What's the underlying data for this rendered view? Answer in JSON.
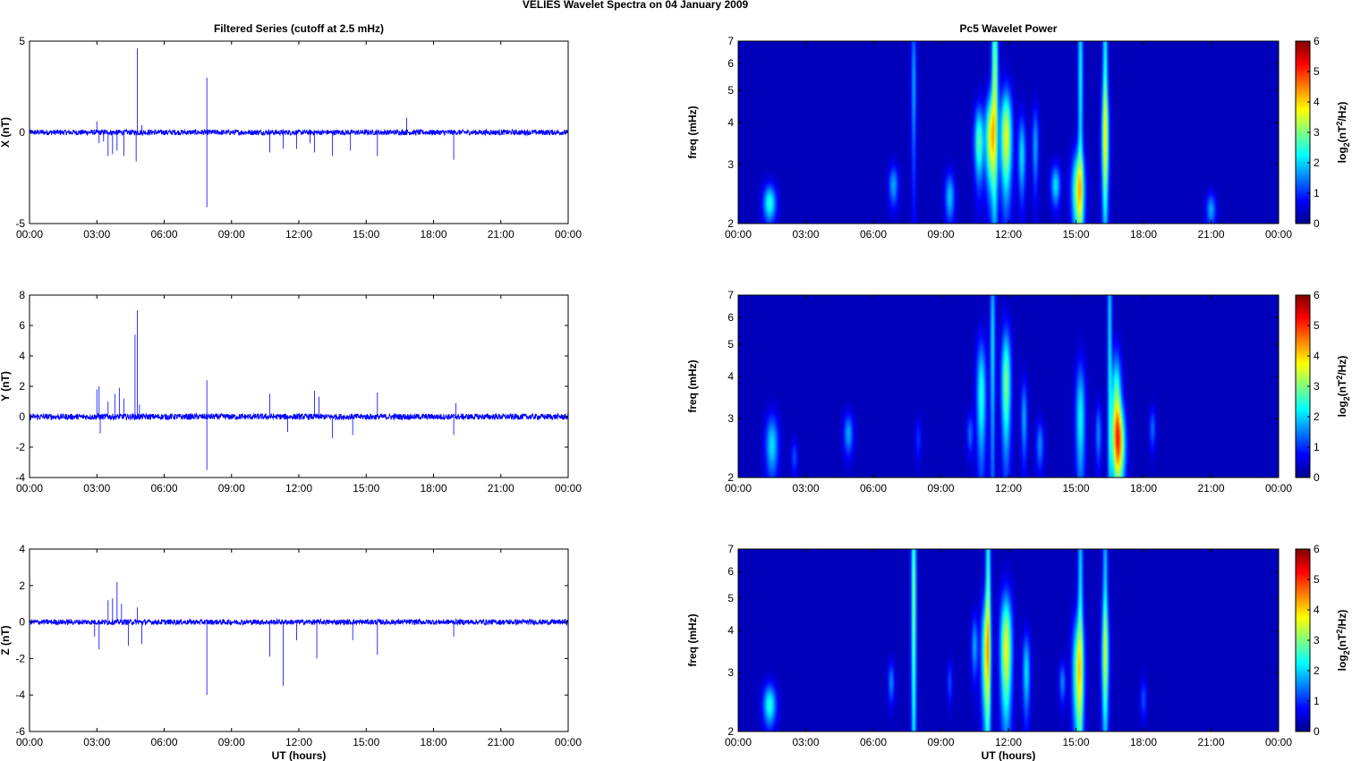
{
  "figure": {
    "title": "VELIES Wavelet Spectra on 04 January   2009",
    "left_title": "Filtered Series (cutoff at 2.5 mHz)",
    "right_title": "Pc5 Wavelet Power"
  },
  "chart_data": [
    {
      "type": "line",
      "ylabel": "X (nT)",
      "xlabel": "",
      "ylim": [
        -5,
        5
      ],
      "yticks": [
        -5,
        0,
        5
      ],
      "xlim_hours": [
        0,
        24
      ],
      "x_tick_labels": [
        "00:00",
        "03:00",
        "06:00",
        "09:00",
        "12:00",
        "15:00",
        "18:00",
        "21:00",
        "00:00"
      ],
      "series_color": "#0000ff",
      "noise_amplitude": 0.15,
      "spikes": [
        {
          "x": 3.0,
          "y": 0.6
        },
        {
          "x": 3.1,
          "y": -0.6
        },
        {
          "x": 3.3,
          "y": -0.5
        },
        {
          "x": 3.5,
          "y": -1.3
        },
        {
          "x": 3.7,
          "y": -1.2
        },
        {
          "x": 3.9,
          "y": -1.0
        },
        {
          "x": 4.2,
          "y": -1.3
        },
        {
          "x": 4.8,
          "y": 4.6
        },
        {
          "x": 4.75,
          "y": -1.6
        },
        {
          "x": 5.0,
          "y": 0.4
        },
        {
          "x": 7.9,
          "y": 3.0
        },
        {
          "x": 7.9,
          "y": -4.1
        },
        {
          "x": 10.7,
          "y": -1.1
        },
        {
          "x": 11.3,
          "y": -0.9
        },
        {
          "x": 11.9,
          "y": -0.9
        },
        {
          "x": 12.5,
          "y": -0.6
        },
        {
          "x": 12.7,
          "y": -1.1
        },
        {
          "x": 13.5,
          "y": -1.3
        },
        {
          "x": 14.3,
          "y": -1.0
        },
        {
          "x": 15.5,
          "y": -1.3
        },
        {
          "x": 16.8,
          "y": 0.8
        },
        {
          "x": 18.9,
          "y": -1.5
        }
      ]
    },
    {
      "type": "line",
      "ylabel": "Y (nT)",
      "xlabel": "",
      "ylim": [
        -4,
        8
      ],
      "yticks": [
        -4,
        -2,
        0,
        2,
        4,
        6,
        8
      ],
      "xlim_hours": [
        0,
        24
      ],
      "x_tick_labels": [
        "00:00",
        "03:00",
        "06:00",
        "09:00",
        "12:00",
        "15:00",
        "18:00",
        "21:00",
        "00:00"
      ],
      "series_color": "#0000ff",
      "noise_amplitude": 0.2,
      "spikes": [
        {
          "x": 3.0,
          "y": 1.8
        },
        {
          "x": 3.1,
          "y": 2.0
        },
        {
          "x": 3.15,
          "y": -1.1
        },
        {
          "x": 3.5,
          "y": 1.0
        },
        {
          "x": 3.8,
          "y": 1.5
        },
        {
          "x": 4.0,
          "y": 1.9
        },
        {
          "x": 4.2,
          "y": 1.2
        },
        {
          "x": 4.7,
          "y": 5.4
        },
        {
          "x": 4.8,
          "y": 7.0
        },
        {
          "x": 4.9,
          "y": 0.8
        },
        {
          "x": 7.9,
          "y": 2.4
        },
        {
          "x": 7.9,
          "y": -3.5
        },
        {
          "x": 10.7,
          "y": 1.5
        },
        {
          "x": 11.5,
          "y": -1.0
        },
        {
          "x": 12.7,
          "y": 1.7
        },
        {
          "x": 12.9,
          "y": 1.3
        },
        {
          "x": 13.5,
          "y": -1.4
        },
        {
          "x": 14.4,
          "y": -1.2
        },
        {
          "x": 15.5,
          "y": 1.6
        },
        {
          "x": 18.9,
          "y": -1.2
        },
        {
          "x": 19.0,
          "y": 0.9
        }
      ]
    },
    {
      "type": "line",
      "ylabel": "Z (nT)",
      "xlabel": "UT (hours)",
      "ylim": [
        -6,
        4
      ],
      "yticks": [
        -6,
        -4,
        -2,
        0,
        2,
        4
      ],
      "xlim_hours": [
        0,
        24
      ],
      "x_tick_labels": [
        "00:00",
        "03:00",
        "06:00",
        "09:00",
        "12:00",
        "15:00",
        "18:00",
        "21:00",
        "00:00"
      ],
      "series_color": "#0000ff",
      "noise_amplitude": 0.15,
      "spikes": [
        {
          "x": 2.9,
          "y": -0.8
        },
        {
          "x": 3.1,
          "y": -1.5
        },
        {
          "x": 3.5,
          "y": 1.2
        },
        {
          "x": 3.7,
          "y": 1.3
        },
        {
          "x": 3.9,
          "y": 2.2
        },
        {
          "x": 4.1,
          "y": 1.0
        },
        {
          "x": 4.4,
          "y": -1.3
        },
        {
          "x": 4.8,
          "y": 0.8
        },
        {
          "x": 5.0,
          "y": -1.2
        },
        {
          "x": 7.9,
          "y": -4.0
        },
        {
          "x": 10.7,
          "y": -1.9
        },
        {
          "x": 11.3,
          "y": -3.5
        },
        {
          "x": 11.9,
          "y": -1.0
        },
        {
          "x": 12.8,
          "y": -2.0
        },
        {
          "x": 14.4,
          "y": -1.0
        },
        {
          "x": 15.5,
          "y": -1.8
        },
        {
          "x": 18.9,
          "y": -0.8
        }
      ]
    },
    {
      "type": "heatmap",
      "ylabel": "freq (mHz)",
      "xlabel": "",
      "y_scale": "log",
      "ylim_mHz": [
        2,
        7
      ],
      "yticks": [
        2,
        3,
        4,
        5,
        6,
        7
      ],
      "xlim_hours": [
        0,
        24
      ],
      "x_tick_labels": [
        "00:00",
        "03:00",
        "06:00",
        "09:00",
        "12:00",
        "15:00",
        "18:00",
        "21:00",
        "00:00"
      ],
      "colorbar_label": "log2(nT2/Hz)",
      "colorbar_range": [
        0,
        6
      ],
      "colorbar_ticks": [
        0,
        1,
        2,
        3,
        4,
        5,
        6
      ],
      "colormap": "jet",
      "blobs": [
        {
          "t": 1.4,
          "f": 2.3,
          "v": 2.4,
          "wt": 0.2,
          "wf": 0.09
        },
        {
          "t": 6.9,
          "f": 2.6,
          "v": 1.6,
          "wt": 0.15,
          "wf": 0.1
        },
        {
          "t": 7.8,
          "f": 5.2,
          "v": 1.6,
          "wt": 0.08,
          "wf": 0.4
        },
        {
          "t": 9.4,
          "f": 2.4,
          "v": 1.8,
          "wt": 0.15,
          "wf": 0.12
        },
        {
          "t": 10.7,
          "f": 3.5,
          "v": 2.8,
          "wt": 0.15,
          "wf": 0.18
        },
        {
          "t": 11.2,
          "f": 3.6,
          "v": 3.6,
          "wt": 0.15,
          "wf": 0.22
        },
        {
          "t": 11.4,
          "f": 5.5,
          "v": 3.2,
          "wt": 0.1,
          "wf": 0.5
        },
        {
          "t": 11.9,
          "f": 3.6,
          "v": 3.8,
          "wt": 0.18,
          "wf": 0.25
        },
        {
          "t": 12.6,
          "f": 3.2,
          "v": 2.0,
          "wt": 0.12,
          "wf": 0.2
        },
        {
          "t": 13.2,
          "f": 3.4,
          "v": 1.6,
          "wt": 0.1,
          "wf": 0.2
        },
        {
          "t": 14.1,
          "f": 2.6,
          "v": 2.0,
          "wt": 0.15,
          "wf": 0.1
        },
        {
          "t": 15.1,
          "f": 2.5,
          "v": 3.4,
          "wt": 0.2,
          "wf": 0.2
        },
        {
          "t": 15.2,
          "f": 5.5,
          "v": 2.2,
          "wt": 0.08,
          "wf": 0.6
        },
        {
          "t": 16.3,
          "f": 3.5,
          "v": 2.6,
          "wt": 0.12,
          "wf": 0.3
        },
        {
          "t": 16.3,
          "f": 6.2,
          "v": 2.2,
          "wt": 0.08,
          "wf": 0.5
        },
        {
          "t": 21.0,
          "f": 2.2,
          "v": 1.6,
          "wt": 0.15,
          "wf": 0.08
        }
      ]
    },
    {
      "type": "heatmap",
      "ylabel": "freq (mHz)",
      "xlabel": "",
      "y_scale": "log",
      "ylim_mHz": [
        2,
        7
      ],
      "yticks": [
        2,
        3,
        4,
        5,
        6,
        7
      ],
      "xlim_hours": [
        0,
        24
      ],
      "x_tick_labels": [
        "00:00",
        "03:00",
        "06:00",
        "09:00",
        "12:00",
        "15:00",
        "18:00",
        "21:00",
        "00:00"
      ],
      "colorbar_label": "log2(nT2/Hz)",
      "colorbar_range": [
        0,
        6
      ],
      "colorbar_ticks": [
        0,
        1,
        2,
        3,
        4,
        5,
        6
      ],
      "colormap": "jet",
      "blobs": [
        {
          "t": 1.5,
          "f": 2.5,
          "v": 2.0,
          "wt": 0.2,
          "wf": 0.15
        },
        {
          "t": 2.5,
          "f": 2.3,
          "v": 1.0,
          "wt": 0.1,
          "wf": 0.08
        },
        {
          "t": 4.9,
          "f": 2.7,
          "v": 1.6,
          "wt": 0.15,
          "wf": 0.1
        },
        {
          "t": 8.0,
          "f": 2.6,
          "v": 0.8,
          "wt": 0.1,
          "wf": 0.1
        },
        {
          "t": 10.3,
          "f": 2.7,
          "v": 1.2,
          "wt": 0.1,
          "wf": 0.1
        },
        {
          "t": 10.8,
          "f": 3.5,
          "v": 2.4,
          "wt": 0.15,
          "wf": 0.3
        },
        {
          "t": 11.3,
          "f": 5.0,
          "v": 2.0,
          "wt": 0.08,
          "wf": 0.6
        },
        {
          "t": 11.9,
          "f": 3.8,
          "v": 3.0,
          "wt": 0.15,
          "wf": 0.3
        },
        {
          "t": 12.7,
          "f": 3.0,
          "v": 1.6,
          "wt": 0.1,
          "wf": 0.2
        },
        {
          "t": 13.4,
          "f": 2.5,
          "v": 1.4,
          "wt": 0.12,
          "wf": 0.12
        },
        {
          "t": 15.2,
          "f": 3.0,
          "v": 2.2,
          "wt": 0.15,
          "wf": 0.3
        },
        {
          "t": 16.0,
          "f": 2.7,
          "v": 1.4,
          "wt": 0.1,
          "wf": 0.15
        },
        {
          "t": 16.5,
          "f": 5.5,
          "v": 2.0,
          "wt": 0.07,
          "wf": 0.7
        },
        {
          "t": 16.9,
          "f": 2.5,
          "v": 4.0,
          "wt": 0.2,
          "wf": 0.2
        },
        {
          "t": 16.8,
          "f": 3.4,
          "v": 2.8,
          "wt": 0.15,
          "wf": 0.25
        },
        {
          "t": 18.4,
          "f": 2.8,
          "v": 1.2,
          "wt": 0.1,
          "wf": 0.1
        }
      ]
    },
    {
      "type": "heatmap",
      "ylabel": "freq (mHz)",
      "xlabel": "UT (hours)",
      "y_scale": "log",
      "ylim_mHz": [
        2,
        7
      ],
      "yticks": [
        2,
        3,
        4,
        5,
        6,
        7
      ],
      "xlim_hours": [
        0,
        24
      ],
      "x_tick_labels": [
        "00:00",
        "03:00",
        "06:00",
        "09:00",
        "12:00",
        "15:00",
        "18:00",
        "21:00",
        "00:00"
      ],
      "colorbar_label": "log2(nT2/Hz)",
      "colorbar_range": [
        0,
        6
      ],
      "colorbar_ticks": [
        0,
        1,
        2,
        3,
        4,
        5,
        6
      ],
      "colormap": "jet",
      "blobs": [
        {
          "t": 1.4,
          "f": 2.4,
          "v": 2.4,
          "wt": 0.2,
          "wf": 0.1
        },
        {
          "t": 6.8,
          "f": 2.8,
          "v": 1.4,
          "wt": 0.1,
          "wf": 0.1
        },
        {
          "t": 7.8,
          "f": 5.0,
          "v": 3.0,
          "wt": 0.08,
          "wf": 0.7
        },
        {
          "t": 9.4,
          "f": 2.8,
          "v": 1.0,
          "wt": 0.08,
          "wf": 0.1
        },
        {
          "t": 10.5,
          "f": 3.6,
          "v": 1.6,
          "wt": 0.1,
          "wf": 0.15
        },
        {
          "t": 11.0,
          "f": 3.4,
          "v": 3.0,
          "wt": 0.15,
          "wf": 0.3
        },
        {
          "t": 11.1,
          "f": 5.5,
          "v": 2.6,
          "wt": 0.08,
          "wf": 0.6
        },
        {
          "t": 11.9,
          "f": 3.5,
          "v": 3.8,
          "wt": 0.18,
          "wf": 0.3
        },
        {
          "t": 12.8,
          "f": 3.0,
          "v": 2.0,
          "wt": 0.12,
          "wf": 0.2
        },
        {
          "t": 14.4,
          "f": 2.8,
          "v": 1.4,
          "wt": 0.1,
          "wf": 0.1
        },
        {
          "t": 15.1,
          "f": 3.0,
          "v": 3.2,
          "wt": 0.18,
          "wf": 0.3
        },
        {
          "t": 15.2,
          "f": 5.5,
          "v": 2.0,
          "wt": 0.08,
          "wf": 0.6
        },
        {
          "t": 16.3,
          "f": 3.3,
          "v": 2.4,
          "wt": 0.12,
          "wf": 0.3
        },
        {
          "t": 16.3,
          "f": 6.0,
          "v": 1.8,
          "wt": 0.08,
          "wf": 0.5
        },
        {
          "t": 18.0,
          "f": 2.5,
          "v": 1.0,
          "wt": 0.1,
          "wf": 0.1
        }
      ]
    }
  ]
}
